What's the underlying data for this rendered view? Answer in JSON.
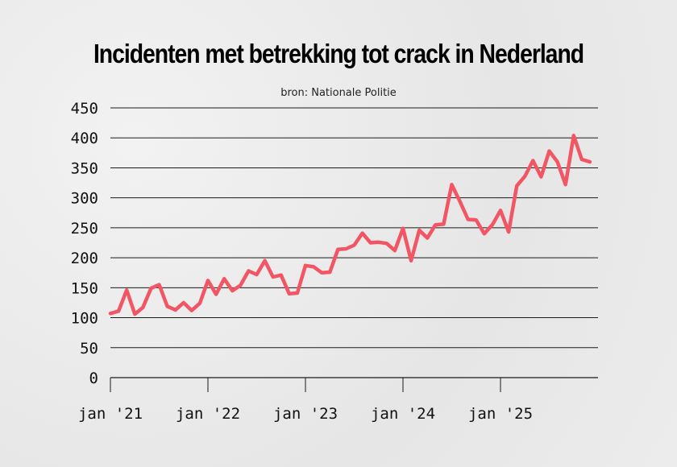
{
  "title": "Incidenten met betrekking tot crack in Nederland",
  "subtitle": "bron: Nationale Politie",
  "colors": {
    "line": "#f25563",
    "grid": "#1a1a1a",
    "text": "#111111"
  },
  "chart_data": {
    "type": "line",
    "title": "Incidenten met betrekking tot crack in Nederland",
    "subtitle": "bron: Nationale Politie",
    "xlabel": "",
    "ylabel": "",
    "ylim": [
      0,
      450
    ],
    "yticks": [
      0,
      50,
      100,
      150,
      200,
      250,
      300,
      350,
      400,
      450
    ],
    "grid": true,
    "xtick_labels": [
      "jan '21",
      "jan '22",
      "jan '23",
      "jan '24",
      "jan '25"
    ],
    "xtick_dates": [
      "2021-01",
      "2022-01",
      "2023-01",
      "2024-01",
      "2025-01"
    ],
    "series": [
      {
        "x": [
          "2021-01",
          "2021-02",
          "2021-03",
          "2021-04",
          "2021-05",
          "2021-06",
          "2021-07",
          "2021-08",
          "2021-09",
          "2021-10",
          "2021-11",
          "2021-12",
          "2022-01",
          "2022-02",
          "2022-03",
          "2022-04",
          "2022-05",
          "2022-06",
          "2022-07",
          "2022-08",
          "2022-09",
          "2022-10",
          "2022-11",
          "2022-12",
          "2023-01",
          "2023-02",
          "2023-03",
          "2023-04",
          "2023-05",
          "2023-06",
          "2023-07",
          "2023-08",
          "2023-09",
          "2023-10",
          "2023-11",
          "2023-12",
          "2024-01",
          "2024-02",
          "2024-03",
          "2024-04",
          "2024-05",
          "2024-06",
          "2024-07",
          "2024-08",
          "2024-09",
          "2024-10",
          "2024-11",
          "2024-12",
          "2025-01",
          "2025-02",
          "2025-03",
          "2025-04",
          "2025-05",
          "2025-06",
          "2025-07",
          "2025-08",
          "2025-09",
          "2025-10",
          "2025-11",
          "2025-12"
        ],
        "values": [
          107,
          111,
          146,
          106,
          117,
          149,
          155,
          119,
          113,
          125,
          112,
          124,
          162,
          139,
          165,
          145,
          154,
          178,
          172,
          195,
          168,
          171,
          140,
          141,
          187,
          185,
          175,
          176,
          214,
          215,
          221,
          241,
          225,
          226,
          224,
          212,
          249,
          195,
          246,
          233,
          255,
          256,
          322,
          294,
          264,
          263,
          240,
          255,
          279,
          243,
          320,
          336,
          362,
          335,
          378,
          360,
          322,
          404,
          364,
          360
        ]
      }
    ]
  }
}
